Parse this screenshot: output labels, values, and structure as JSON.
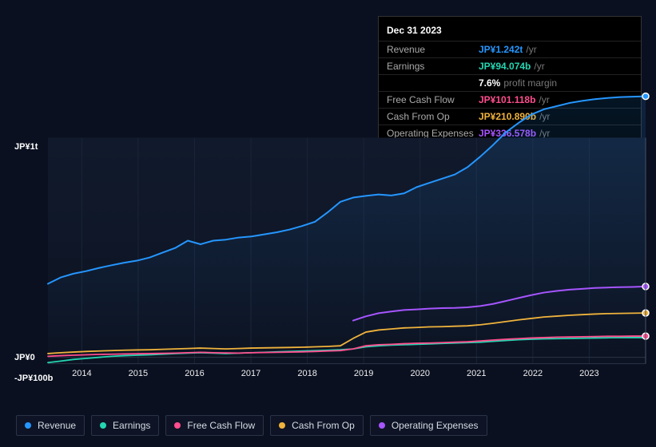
{
  "background_color": "#0a1020",
  "tooltip": {
    "title": "Dec 31 2023",
    "rows": [
      {
        "label": "Revenue",
        "value": "JP¥1.242t",
        "suffix": "/yr",
        "color": "#2596ff"
      },
      {
        "label": "Earnings",
        "value": "JP¥94.074b",
        "suffix": "/yr",
        "color": "#24d6b3"
      },
      {
        "label": "",
        "value": "7.6%",
        "suffix": "profit margin",
        "color": "#ffffff"
      },
      {
        "label": "Free Cash Flow",
        "value": "JP¥101.118b",
        "suffix": "/yr",
        "color": "#ff4d8d"
      },
      {
        "label": "Cash From Op",
        "value": "JP¥210.890b",
        "suffix": "/yr",
        "color": "#f0b33c"
      },
      {
        "label": "Operating Expenses",
        "value": "JP¥336.578b",
        "suffix": "/yr",
        "color": "#a655ff"
      }
    ]
  },
  "chart": {
    "type": "line",
    "plot_bg_top": "#111a2c",
    "plot_bg_bottom": "#0c1322",
    "grid_color": "#1a2438",
    "baseline_color": "#2a3446",
    "y_axis": {
      "domain_min_b": -100,
      "domain_max_b": 1100,
      "ticks": [
        {
          "value_b": 1000,
          "label": "JP¥1t"
        },
        {
          "value_b": 0,
          "label": "JP¥0"
        },
        {
          "value_b": -100,
          "label": "-JP¥100b"
        }
      ],
      "label_color": "#ffffff",
      "label_fontsize": 11
    },
    "x_axis": {
      "domain_min": 2013.4,
      "domain_max": 2024.0,
      "ticks": [
        2014,
        2015,
        2016,
        2017,
        2018,
        2019,
        2020,
        2021,
        2022,
        2023
      ],
      "label_color": "#eeeeee",
      "label_fontsize": 11
    },
    "cursor": {
      "x": 2024.0,
      "line_color": "#455266"
    },
    "series": [
      {
        "name": "Revenue",
        "color": "#2596ff",
        "width": 2.0,
        "area_fill": true,
        "area_opacity": 0.14,
        "points_b": [
          350,
          380,
          398,
          410,
          425,
          438,
          450,
          460,
          475,
          498,
          520,
          555,
          538,
          555,
          560,
          570,
          575,
          585,
          595,
          608,
          625,
          645,
          690,
          740,
          760,
          768,
          775,
          770,
          780,
          810,
          830,
          850,
          870,
          905,
          955,
          1010,
          1070,
          1115,
          1155,
          1180,
          1195,
          1210,
          1220,
          1228,
          1234,
          1238,
          1240,
          1242
        ],
        "end_marker": true
      },
      {
        "name": "Earnings",
        "color": "#24d6b3",
        "width": 1.8,
        "points_b": [
          -25,
          -18,
          -10,
          -5,
          0,
          5,
          8,
          10,
          12,
          15,
          18,
          20,
          22,
          20,
          18,
          20,
          22,
          24,
          26,
          28,
          30,
          32,
          34,
          36,
          40,
          50,
          55,
          58,
          60,
          62,
          64,
          66,
          68,
          70,
          72,
          76,
          80,
          84,
          86,
          88,
          89,
          90,
          91,
          92,
          93,
          94,
          94,
          94
        ]
      },
      {
        "name": "Free Cash Flow",
        "color": "#ff4d8d",
        "width": 1.8,
        "points_b": [
          5,
          8,
          10,
          12,
          14,
          15,
          16,
          17,
          18,
          19,
          20,
          22,
          24,
          22,
          21,
          20,
          22,
          23,
          24,
          25,
          26,
          28,
          30,
          32,
          40,
          55,
          60,
          62,
          65,
          67,
          68,
          70,
          72,
          74,
          78,
          82,
          86,
          89,
          92,
          94,
          96,
          97,
          98,
          99,
          100,
          100,
          101,
          101
        ],
        "end_marker": true
      },
      {
        "name": "Cash From Op",
        "color": "#f0b33c",
        "width": 1.8,
        "points_b": [
          18,
          22,
          25,
          28,
          30,
          32,
          34,
          35,
          36,
          38,
          40,
          42,
          44,
          42,
          40,
          42,
          44,
          45,
          46,
          47,
          48,
          50,
          52,
          55,
          90,
          120,
          130,
          135,
          140,
          142,
          145,
          146,
          148,
          150,
          155,
          162,
          170,
          178,
          185,
          192,
          196,
          200,
          203,
          206,
          208,
          209,
          210,
          211
        ],
        "end_marker": true
      },
      {
        "name": "Operating Expenses",
        "color": "#a655ff",
        "width": 2.0,
        "points_b": [
          null,
          null,
          null,
          null,
          null,
          null,
          null,
          null,
          null,
          null,
          null,
          null,
          null,
          null,
          null,
          null,
          null,
          null,
          null,
          null,
          null,
          null,
          null,
          null,
          175,
          195,
          210,
          218,
          225,
          228,
          232,
          234,
          235,
          238,
          244,
          254,
          268,
          282,
          296,
          308,
          316,
          322,
          326,
          330,
          332,
          334,
          335,
          337
        ],
        "end_marker": true
      }
    ],
    "legend": {
      "items": [
        {
          "label": "Revenue",
          "color": "#2596ff"
        },
        {
          "label": "Earnings",
          "color": "#24d6b3"
        },
        {
          "label": "Free Cash Flow",
          "color": "#ff4d8d"
        },
        {
          "label": "Cash From Op",
          "color": "#f0b33c"
        },
        {
          "label": "Operating Expenses",
          "color": "#a655ff"
        }
      ],
      "border_color": "#2a3446",
      "label_color": "#d6dbe4",
      "label_fontsize": 12
    }
  }
}
